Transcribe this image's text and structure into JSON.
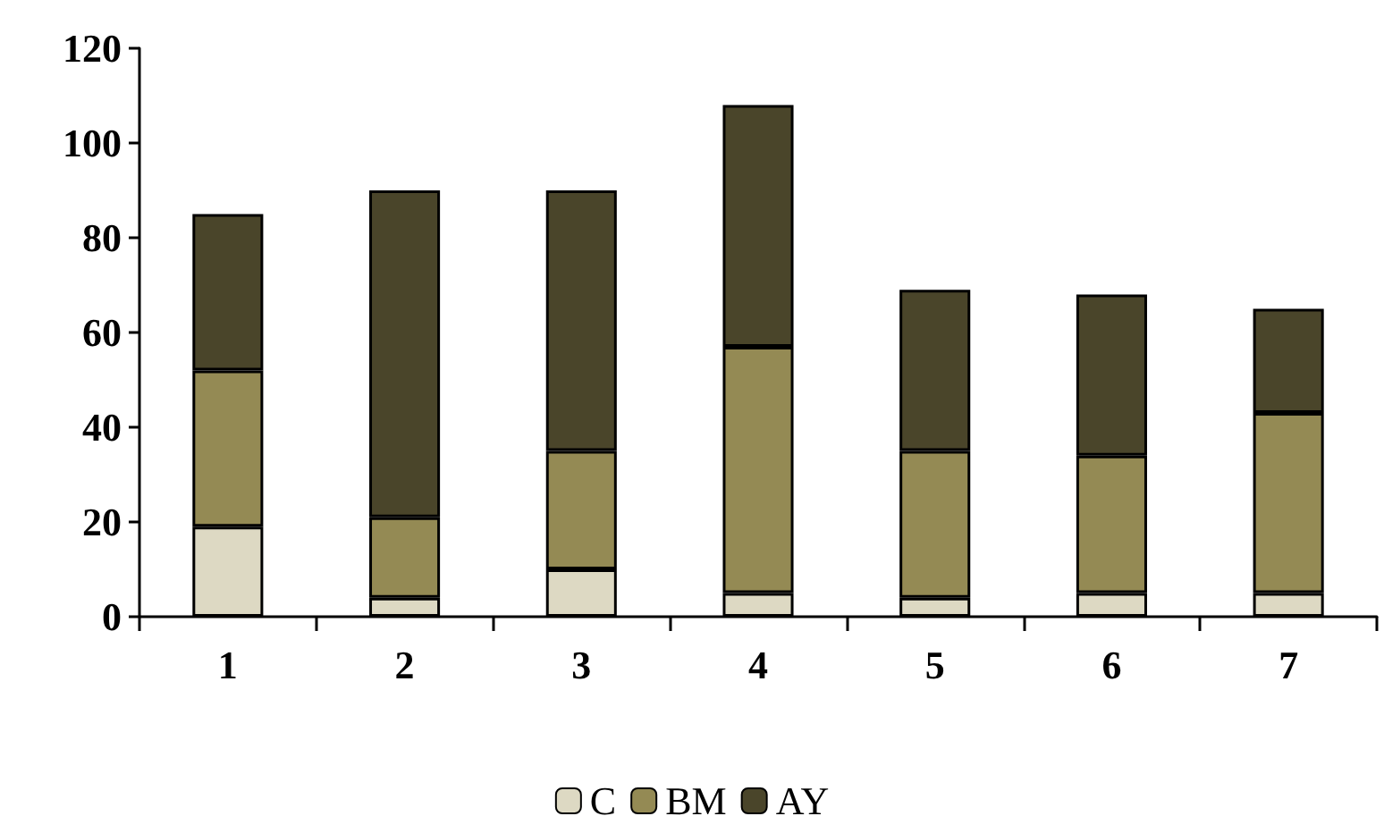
{
  "chart_data": {
    "type": "bar",
    "stacked": true,
    "categories": [
      "1",
      "2",
      "3",
      "4",
      "5",
      "6",
      "7"
    ],
    "series": [
      {
        "name": "C",
        "color": "#ddd9c3",
        "values": [
          19,
          4,
          10,
          5,
          4,
          5,
          5
        ]
      },
      {
        "name": "BM",
        "color": "#948a54",
        "values": [
          33,
          17,
          25,
          52,
          31,
          29,
          38
        ]
      },
      {
        "name": "AY",
        "color": "#4a452a",
        "values": [
          33,
          69,
          55,
          51,
          34,
          34,
          22
        ]
      }
    ],
    "ylim": [
      0,
      120
    ],
    "yticks": [
      0,
      20,
      40,
      60,
      80,
      100,
      120
    ],
    "grid": false,
    "legend": "bottom"
  }
}
